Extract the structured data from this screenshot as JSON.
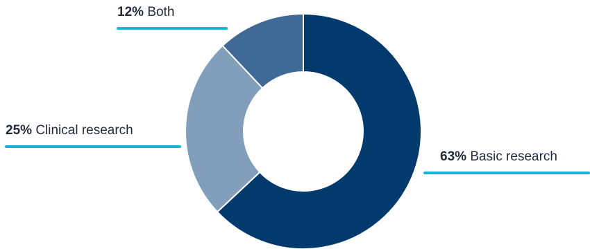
{
  "chart_data": {
    "type": "pie",
    "donut": true,
    "series": [
      {
        "name": "Basic research",
        "value": 63,
        "value_label": "63%",
        "color": "#023a6e"
      },
      {
        "name": "Clinical research",
        "value": 25,
        "value_label": "25%",
        "color": "#819fbb"
      },
      {
        "name": "Both",
        "value": 12,
        "value_label": "12%",
        "color": "#3f6a95"
      }
    ],
    "leader_color": "#1bb4d4",
    "slice_border_color": "#ffffff"
  }
}
